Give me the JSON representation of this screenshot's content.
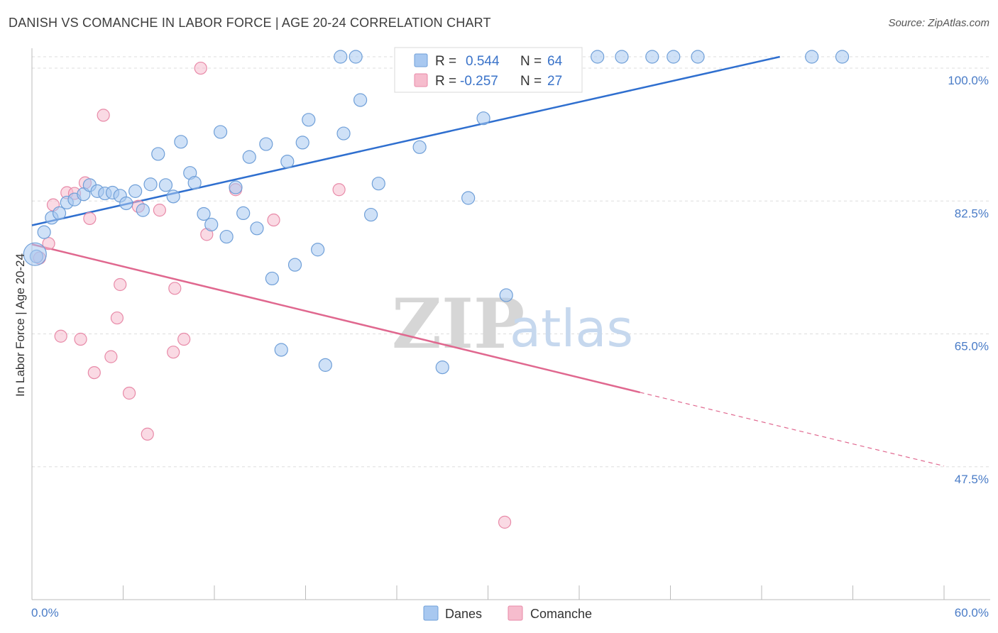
{
  "title": "DANISH VS COMANCHE IN LABOR FORCE | AGE 20-24 CORRELATION CHART",
  "source": "Source: ZipAtlas.com",
  "watermark": {
    "zip": "ZIP",
    "atlas": "atlas"
  },
  "colors": {
    "danes_fill": "#a8c8f0",
    "danes_stroke": "#6f9fd8",
    "danes_line": "#2f6fcf",
    "comanche_fill": "#f6bccd",
    "comanche_stroke": "#e88aa8",
    "comanche_line": "#e0688f",
    "axis_label": "#4a7cc7",
    "grid": "#dddddd"
  },
  "legend": {
    "row1": {
      "r_label": "R =",
      "r_value": "0.544",
      "n_label": "N =",
      "n_value": "64"
    },
    "row2": {
      "r_label": "R =",
      "r_value": "-0.257",
      "n_label": "N =",
      "n_value": "27"
    }
  },
  "bottom_legend": {
    "danes": "Danes",
    "comanche": "Comanche"
  },
  "chart_data": {
    "type": "scatter",
    "title": "DANISH VS COMANCHE IN LABOR FORCE | AGE 20-24 CORRELATION CHART",
    "xlabel": "",
    "ylabel": "In Labor Force | Age 20-24",
    "xlim": [
      0,
      60
    ],
    "ylim": [
      30,
      101.5
    ],
    "x_tick_labels": [
      "0.0%",
      "60.0%"
    ],
    "y_ticks": [
      47.5,
      65.0,
      82.5,
      100.0
    ],
    "y_tick_labels": [
      "47.5%",
      "65.0%",
      "82.5%",
      "100.0%"
    ],
    "grid": true,
    "legend_position": "top-center",
    "series": [
      {
        "name": "Danes",
        "r": 0.544,
        "n": 64,
        "trend": {
          "x": [
            0,
            49.2
          ],
          "y": [
            79.3,
            101.5
          ]
        },
        "points": [
          [
            0.3,
            75.2
          ],
          [
            0.8,
            78.4
          ],
          [
            1.3,
            80.3
          ],
          [
            1.8,
            80.9
          ],
          [
            2.3,
            82.3
          ],
          [
            2.8,
            82.7
          ],
          [
            3.4,
            83.4
          ],
          [
            3.8,
            84.6
          ],
          [
            4.3,
            83.8
          ],
          [
            4.8,
            83.5
          ],
          [
            5.3,
            83.6
          ],
          [
            5.8,
            83.2
          ],
          [
            6.2,
            82.2
          ],
          [
            6.8,
            83.8
          ],
          [
            7.3,
            81.3
          ],
          [
            7.8,
            84.7
          ],
          [
            8.3,
            88.7
          ],
          [
            8.8,
            84.6
          ],
          [
            9.3,
            83.1
          ],
          [
            9.8,
            90.3
          ],
          [
            10.4,
            86.2
          ],
          [
            10.7,
            84.9
          ],
          [
            11.3,
            80.8
          ],
          [
            11.8,
            79.4
          ],
          [
            12.4,
            91.6
          ],
          [
            12.8,
            77.8
          ],
          [
            13.4,
            84.3
          ],
          [
            13.9,
            80.9
          ],
          [
            14.3,
            88.3
          ],
          [
            14.8,
            78.9
          ],
          [
            15.4,
            90.0
          ],
          [
            15.8,
            72.3
          ],
          [
            16.4,
            62.9
          ],
          [
            16.8,
            87.7
          ],
          [
            17.3,
            74.1
          ],
          [
            17.8,
            90.2
          ],
          [
            18.2,
            93.2
          ],
          [
            18.8,
            76.1
          ],
          [
            19.3,
            60.9
          ],
          [
            20.3,
            101.5
          ],
          [
            20.5,
            91.4
          ],
          [
            21.3,
            101.5
          ],
          [
            21.6,
            95.8
          ],
          [
            22.3,
            80.7
          ],
          [
            22.8,
            84.8
          ],
          [
            24.4,
            101.5
          ],
          [
            25.5,
            89.6
          ],
          [
            26.0,
            101.5
          ],
          [
            27.0,
            60.6
          ],
          [
            28.2,
            101.5
          ],
          [
            28.7,
            82.9
          ],
          [
            29.7,
            93.4
          ],
          [
            30.0,
            101.5
          ],
          [
            31.2,
            70.1
          ],
          [
            32.5,
            101.5
          ],
          [
            35.3,
            101.5
          ],
          [
            37.2,
            101.5
          ],
          [
            38.8,
            101.5
          ],
          [
            40.8,
            101.5
          ],
          [
            42.2,
            101.5
          ],
          [
            43.8,
            101.5
          ],
          [
            51.3,
            101.5
          ],
          [
            53.3,
            101.5
          ],
          [
            0.2,
            75.5
          ]
        ]
      },
      {
        "name": "Comanche",
        "r": -0.257,
        "n": 27,
        "trend": {
          "x": [
            0,
            40.0
          ],
          "y": [
            76.8,
            57.3
          ]
        },
        "trend_dashed": {
          "x": [
            40.0,
            60.0
          ],
          "y": [
            57.3,
            47.6
          ]
        },
        "points": [
          [
            0.5,
            75.0
          ],
          [
            1.1,
            76.9
          ],
          [
            1.4,
            82.0
          ],
          [
            1.9,
            64.7
          ],
          [
            2.3,
            83.6
          ],
          [
            2.8,
            83.5
          ],
          [
            3.2,
            64.3
          ],
          [
            3.5,
            84.9
          ],
          [
            3.8,
            80.2
          ],
          [
            4.1,
            59.9
          ],
          [
            4.7,
            93.8
          ],
          [
            5.2,
            62.0
          ],
          [
            5.6,
            67.1
          ],
          [
            5.8,
            71.5
          ],
          [
            6.4,
            57.2
          ],
          [
            7.0,
            81.8
          ],
          [
            7.6,
            51.8
          ],
          [
            8.4,
            81.3
          ],
          [
            9.3,
            62.6
          ],
          [
            9.4,
            71.0
          ],
          [
            10.0,
            64.3
          ],
          [
            11.5,
            78.1
          ],
          [
            11.1,
            100.0
          ],
          [
            13.4,
            84.0
          ],
          [
            15.9,
            80.0
          ],
          [
            20.2,
            84.0
          ],
          [
            31.1,
            40.2
          ]
        ]
      }
    ]
  }
}
